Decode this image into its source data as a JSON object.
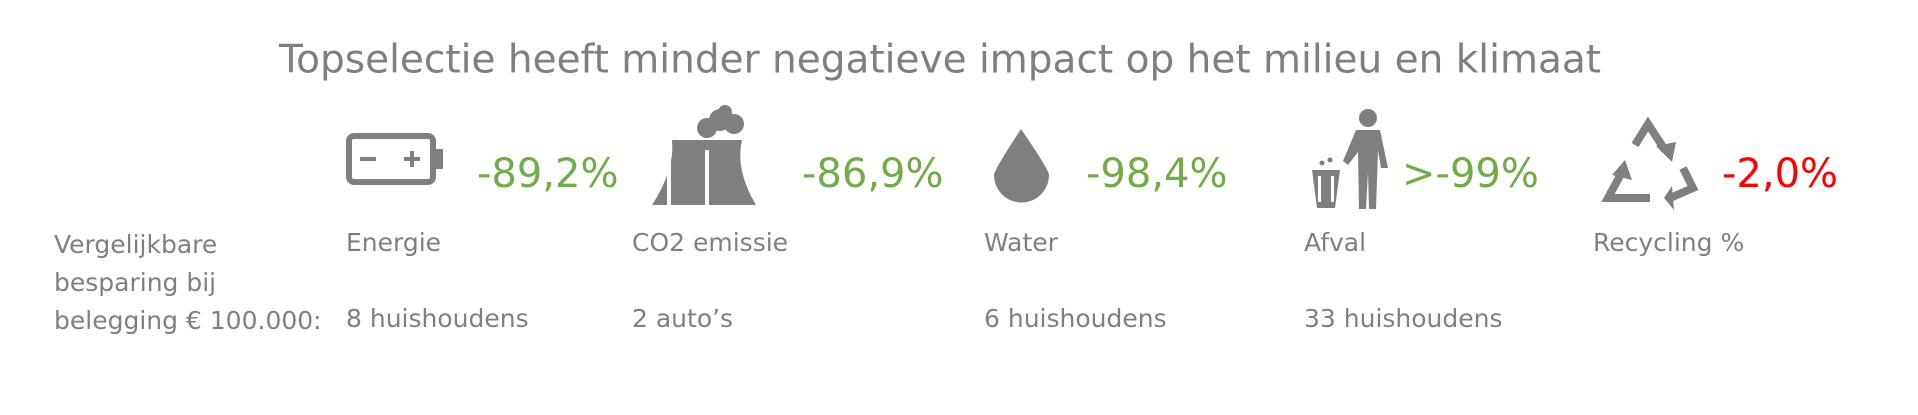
{
  "title": "Topselectie heeft minder negatieve impact op het milieu en klimaat",
  "row_label": [
    "Vergelijkbare",
    "besparing bij",
    "belegging € 100.000:"
  ],
  "items": [
    {
      "label": "Energie",
      "percent": "-89,2%",
      "color": "#70ad47",
      "equivalent": "8 huishoudens"
    },
    {
      "label": "CO2 emissie",
      "percent": "-86,9%",
      "color": "#70ad47",
      "equivalent": "2 auto’s"
    },
    {
      "label": "Water",
      "percent": "-98,4%",
      "color": "#70ad47",
      "equivalent": "6 huishoudens"
    },
    {
      "label": "Afval",
      "percent": ">-99%",
      "color": "#70ad47",
      "equivalent": "33 huishoudens"
    },
    {
      "label": "Recycling %",
      "percent": "-2,0%",
      "color": "#ff0000"
    }
  ]
}
